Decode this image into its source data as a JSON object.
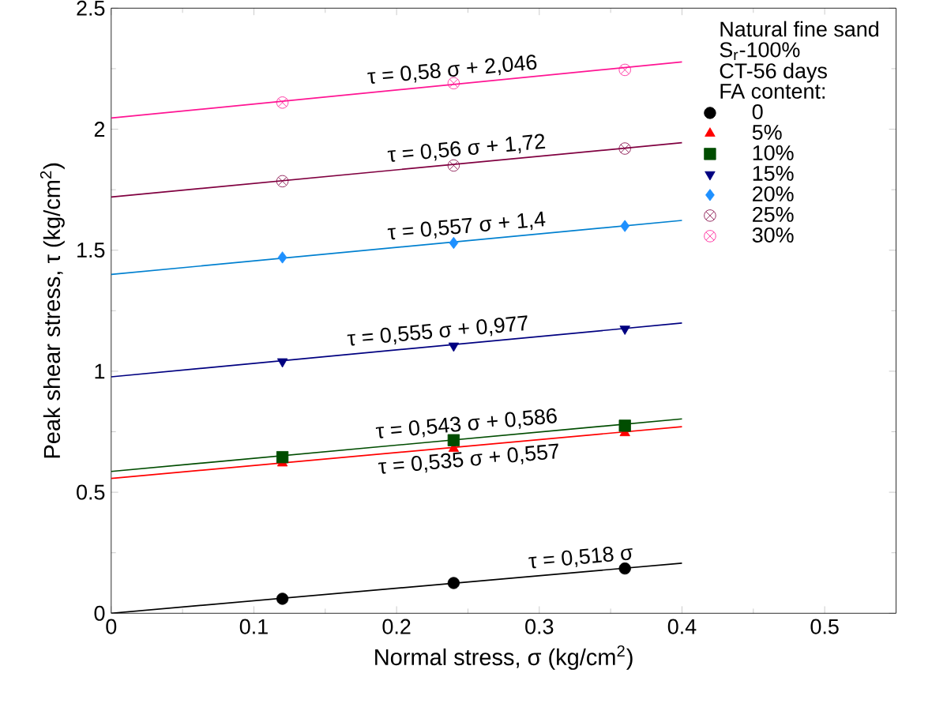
{
  "chart_data": {
    "type": "scatter",
    "xlabel": "Normal stress, σ (kg/cm$^{2}$)",
    "ylabel": "Peak shear stress, τ (kg/cm$^{2}$)",
    "legend_title": "FA content:",
    "legend": "top right",
    "xlim": [
      0,
      0.55
    ],
    "ylim": [
      0,
      2.5
    ],
    "xticks": [
      0,
      0.1,
      0.2,
      0.3,
      0.4,
      0.5
    ],
    "yticks": [
      0,
      0.5,
      1,
      1.5,
      2,
      2.5
    ],
    "annotations": [
      "Natural fine sand",
      "S$_{r}$-100%",
      "CT-56 days",
      {
        "text": "τ = 0,518 σ",
        "x": 0.33,
        "y": 0.171
      },
      {
        "text": "τ = 0,535 σ + 0,557",
        "x": 0.25,
        "y": 0.691
      },
      {
        "text": "τ = 0,543 σ + 0,586",
        "x": 0.25,
        "y": 0.722
      },
      {
        "text": "τ = 0,555 σ + 0,977",
        "x": 0.23,
        "y": 1.105
      },
      {
        "text": "τ = 0,557 σ + 1,4",
        "x": 0.25,
        "y": 1.539
      },
      {
        "text": "τ = 0,56 σ + 1,72",
        "x": 0.25,
        "y": 1.86
      },
      {
        "text": "τ = 0,58 σ + 2,046",
        "x": 0.24,
        "y": 2.185
      }
    ],
    "series": [
      {
        "type": "line",
        "color": "#000000",
        "x": [
          0,
          0.4
        ],
        "values": [
          0,
          0.207
        ],
        "marker": "none"
      },
      {
        "type": "line",
        "color": "#ff0000",
        "x": [
          0,
          0.4
        ],
        "values": [
          0.557,
          0.771
        ],
        "marker": "none"
      },
      {
        "type": "line",
        "color": "#004d00",
        "x": [
          0,
          0.4
        ],
        "values": [
          0.586,
          0.803
        ],
        "marker": "none"
      },
      {
        "type": "line",
        "color": "#000080",
        "x": [
          0,
          0.4
        ],
        "values": [
          0.977,
          1.199
        ],
        "marker": "none"
      },
      {
        "type": "line",
        "color": "#0080d0",
        "x": [
          0,
          0.4
        ],
        "values": [
          1.4,
          1.623
        ],
        "marker": "none"
      },
      {
        "type": "line",
        "color": "#800040",
        "x": [
          0,
          0.4
        ],
        "values": [
          1.72,
          1.944
        ],
        "marker": "none"
      },
      {
        "type": "line",
        "color": "#ff1493",
        "x": [
          0,
          0.4
        ],
        "values": [
          2.046,
          2.278
        ],
        "marker": "none"
      },
      {
        "name": "0",
        "color": "#000000",
        "x": [
          0.12,
          0.24,
          0.36
        ],
        "values": [
          0.06,
          0.125,
          0.185
        ],
        "marker": "circle"
      },
      {
        "name": "5%",
        "color": "#ff0000",
        "x": [
          0.12,
          0.24,
          0.36
        ],
        "values": [
          0.62,
          0.68,
          0.745
        ],
        "marker": "triangle"
      },
      {
        "name": "10%",
        "color": "#004d00",
        "x": [
          0.12,
          0.24,
          0.36
        ],
        "values": [
          0.645,
          0.715,
          0.775
        ],
        "marker": "square"
      },
      {
        "name": "15%",
        "color": "#000080",
        "x": [
          0.12,
          0.24,
          0.36
        ],
        "values": [
          1.04,
          1.105,
          1.175
        ],
        "marker": "triangle-down"
      },
      {
        "name": "20%",
        "color": "#1e90ff",
        "x": [
          0.12,
          0.24,
          0.36
        ],
        "values": [
          1.47,
          1.53,
          1.6
        ],
        "marker": "diamond"
      },
      {
        "name": "25%",
        "color": "#800040",
        "x": [
          0.12,
          0.24,
          0.36
        ],
        "values": [
          1.785,
          1.85,
          1.92
        ],
        "marker": "cross"
      },
      {
        "name": "30%",
        "color": "#ff1493",
        "x": [
          0.12,
          0.24,
          0.36
        ],
        "values": [
          2.11,
          2.19,
          2.245
        ],
        "marker": "cross"
      }
    ]
  }
}
